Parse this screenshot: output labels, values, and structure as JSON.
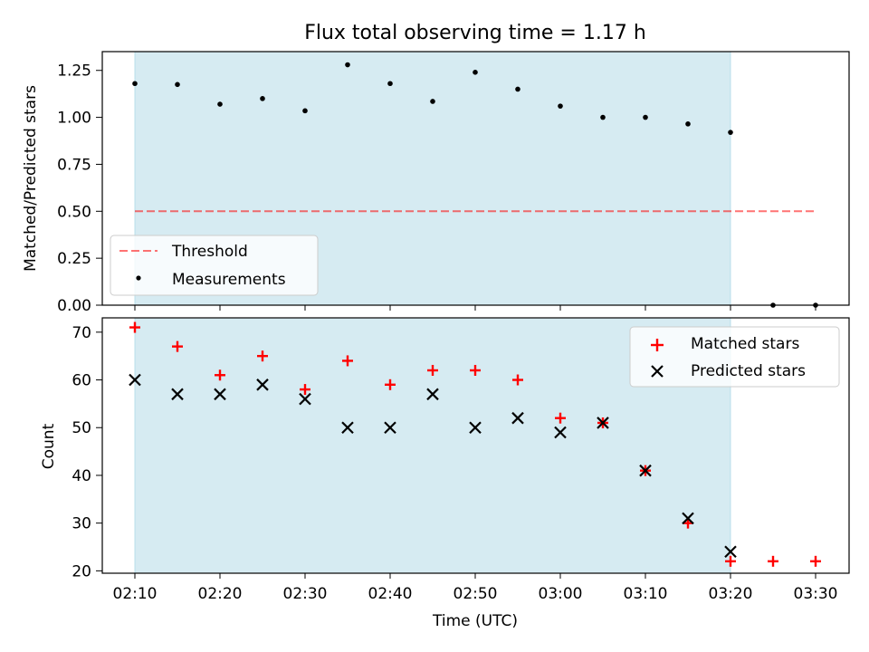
{
  "figure": {
    "title": "Flux total observing time = 1.17 h"
  },
  "colors": {
    "shade": "#add8e6",
    "threshold": "#ff0000",
    "matched": "#ff0000",
    "predicted": "#000000",
    "measurements": "#000000"
  },
  "chart_data": [
    {
      "type": "scatter",
      "ylabel": "Matched/Predicted stars",
      "ylim": [
        0,
        1.35
      ],
      "yticks": [
        "0.00",
        "0.25",
        "0.50",
        "0.75",
        "1.00",
        "1.25"
      ],
      "shaded_span": [
        "02:10",
        "03:20"
      ],
      "legend_position": "lower-left",
      "threshold": {
        "name": "Threshold",
        "value": 0.5,
        "x_range": [
          "02:10",
          "03:30"
        ],
        "style": "dashed"
      },
      "series": [
        {
          "name": "Measurements",
          "x": [
            "02:10",
            "02:15",
            "02:20",
            "02:25",
            "02:30",
            "02:35",
            "02:40",
            "02:45",
            "02:50",
            "02:55",
            "03:00",
            "03:05",
            "03:10",
            "03:15",
            "03:20",
            "03:25",
            "03:30"
          ],
          "y": [
            1.18,
            1.175,
            1.07,
            1.1,
            1.035,
            1.28,
            1.18,
            1.085,
            1.24,
            1.15,
            1.06,
            1.0,
            1.0,
            0.965,
            0.92,
            0.0,
            0.0
          ]
        }
      ]
    },
    {
      "type": "scatter",
      "ylabel": "Count",
      "xlabel": "Time (UTC)",
      "ylim": [
        19.5,
        73
      ],
      "yticks": [
        "20",
        "30",
        "40",
        "50",
        "60",
        "70"
      ],
      "xticks": [
        "02:10",
        "02:20",
        "02:30",
        "02:40",
        "02:50",
        "03:00",
        "03:10",
        "03:20",
        "03:30"
      ],
      "shaded_span": [
        "02:10",
        "03:20"
      ],
      "legend_position": "upper-right",
      "series": [
        {
          "name": "Matched stars",
          "marker": "+",
          "x": [
            "02:10",
            "02:15",
            "02:20",
            "02:25",
            "02:30",
            "02:35",
            "02:40",
            "02:45",
            "02:50",
            "02:55",
            "03:00",
            "03:05",
            "03:10",
            "03:15",
            "03:20",
            "03:25",
            "03:30"
          ],
          "y": [
            71,
            67,
            61,
            65,
            58,
            64,
            59,
            62,
            62,
            60,
            52,
            51,
            41,
            30,
            22,
            22,
            22
          ]
        },
        {
          "name": "Predicted stars",
          "marker": "x",
          "x": [
            "02:10",
            "02:15",
            "02:20",
            "02:25",
            "02:30",
            "02:35",
            "02:40",
            "02:45",
            "02:50",
            "02:55",
            "03:00",
            "03:05",
            "03:10",
            "03:15",
            "03:20"
          ],
          "y": [
            60,
            57,
            57,
            59,
            56,
            50,
            50,
            57,
            50,
            52,
            49,
            51,
            41,
            31,
            24
          ]
        }
      ]
    }
  ]
}
